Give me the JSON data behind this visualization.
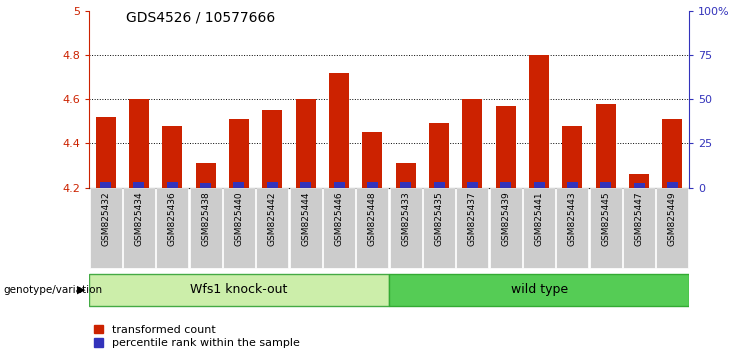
{
  "title": "GDS4526 / 10577666",
  "samples": [
    "GSM825432",
    "GSM825434",
    "GSM825436",
    "GSM825438",
    "GSM825440",
    "GSM825442",
    "GSM825444",
    "GSM825446",
    "GSM825448",
    "GSM825433",
    "GSM825435",
    "GSM825437",
    "GSM825439",
    "GSM825441",
    "GSM825443",
    "GSM825445",
    "GSM825447",
    "GSM825449"
  ],
  "red_values": [
    4.52,
    4.6,
    4.48,
    4.31,
    4.51,
    4.55,
    4.6,
    4.72,
    4.45,
    4.31,
    4.49,
    4.6,
    4.57,
    4.8,
    4.48,
    4.58,
    4.26,
    4.51
  ],
  "blue_values": [
    0.025,
    0.025,
    0.025,
    0.022,
    0.025,
    0.025,
    0.025,
    0.025,
    0.025,
    0.025,
    0.025,
    0.025,
    0.025,
    0.025,
    0.025,
    0.025,
    0.02,
    0.025
  ],
  "base": 4.2,
  "ylim_left": [
    4.2,
    5.0
  ],
  "ylim_right": [
    0,
    100
  ],
  "yticks_left": [
    4.2,
    4.4,
    4.6,
    4.8,
    5.0
  ],
  "ytick_labels_left": [
    "4.2",
    "4.4",
    "4.6",
    "4.8",
    "5"
  ],
  "ytick_labels_right": [
    "0",
    "25",
    "50",
    "75",
    "100%"
  ],
  "group1_label": "Wfs1 knock-out",
  "group2_label": "wild type",
  "group1_count": 9,
  "group2_count": 9,
  "group_label_left": "genotype/variation",
  "legend1": "transformed count",
  "legend2": "percentile rank within the sample",
  "bar_color_red": "#cc2200",
  "bar_color_blue": "#3333bb",
  "group1_bg": "#cceeaa",
  "group2_bg": "#55cc55",
  "tick_box_bg": "#cccccc",
  "left_axis_color": "#cc2200",
  "right_axis_color": "#3333bb",
  "grid_color": "#000000",
  "bar_width": 0.6
}
